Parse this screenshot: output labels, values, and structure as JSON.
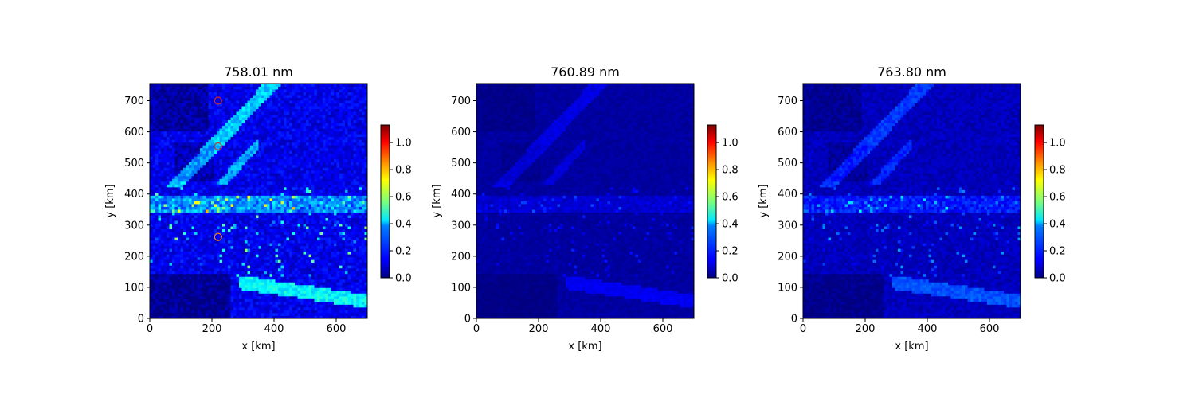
{
  "chart_data": [
    {
      "type": "heatmap",
      "title": "758.01 nm",
      "xlabel": "x [km]",
      "ylabel": "y [km]",
      "xlim": [
        0,
        700
      ],
      "ylim": [
        0,
        755
      ],
      "xticks": [
        "0",
        "200",
        "400",
        "600"
      ],
      "yticks": [
        "0",
        "100",
        "200",
        "300",
        "400",
        "500",
        "600",
        "700"
      ],
      "colormap": "jet",
      "colorbar": {
        "range": [
          0.0,
          1.13
        ],
        "ticks": [
          "0.0",
          "0.2",
          "0.4",
          "0.6",
          "0.8",
          "1.0"
        ]
      },
      "intensity_scale": 1.0,
      "markers": [
        {
          "x": 220,
          "y": 700,
          "color": "#d62728"
        },
        {
          "x": 220,
          "y": 553,
          "color": "#d62728"
        },
        {
          "x": 220,
          "y": 262,
          "color": "#ff7f0e"
        }
      ]
    },
    {
      "type": "heatmap",
      "title": "760.89 nm",
      "xlabel": "x [km]",
      "ylabel": "y [km]",
      "xlim": [
        0,
        700
      ],
      "ylim": [
        0,
        755
      ],
      "xticks": [
        "0",
        "200",
        "400",
        "600"
      ],
      "yticks": [
        "0",
        "100",
        "200",
        "300",
        "400",
        "500",
        "600",
        "700"
      ],
      "colormap": "jet",
      "colorbar": {
        "range": [
          0.0,
          1.13
        ],
        "ticks": [
          "0.0",
          "0.2",
          "0.4",
          "0.6",
          "0.8",
          "1.0"
        ]
      },
      "intensity_scale": 0.3,
      "markers": []
    },
    {
      "type": "heatmap",
      "title": "763.80 nm",
      "xlabel": "x [km]",
      "ylabel": "y [km]",
      "xlim": [
        0,
        700
      ],
      "ylim": [
        0,
        755
      ],
      "xticks": [
        "0",
        "200",
        "400",
        "600"
      ],
      "yticks": [
        "0",
        "100",
        "200",
        "300",
        "400",
        "500",
        "600",
        "700"
      ],
      "colormap": "jet",
      "colorbar": {
        "range": [
          0.0,
          1.13
        ],
        "ticks": [
          "0.0",
          "0.2",
          "0.4",
          "0.6",
          "0.8",
          "1.0"
        ]
      },
      "intensity_scale": 0.55,
      "markers": []
    }
  ]
}
